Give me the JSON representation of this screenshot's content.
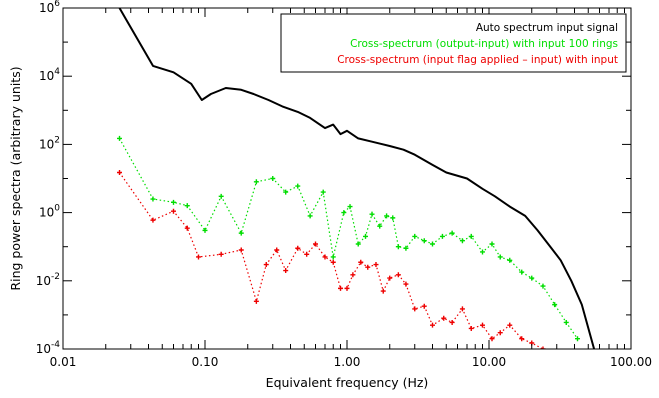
{
  "chart_data": {
    "type": "scatter",
    "title": "",
    "xlabel": "Equivalent frequency (Hz)",
    "ylabel": "Ring power spectra (arbitrary units)",
    "x_scale": "log",
    "y_scale": "log",
    "xlim": [
      0.01,
      100
    ],
    "ylim": [
      0.0001,
      1000000
    ],
    "x_ticks": [
      {
        "value": 0.01,
        "label": "0.01"
      },
      {
        "value": 0.1,
        "label": "0.10"
      },
      {
        "value": 1,
        "label": "1.00"
      },
      {
        "value": 10,
        "label": "10.00"
      },
      {
        "value": 100,
        "label": "100.00"
      }
    ],
    "y_ticks": [
      {
        "value": 0.0001,
        "base": "10",
        "exp": "-4"
      },
      {
        "value": 0.01,
        "base": "10",
        "exp": "-2"
      },
      {
        "value": 1,
        "base": "10",
        "exp": "0"
      },
      {
        "value": 100,
        "base": "10",
        "exp": "2"
      },
      {
        "value": 10000,
        "base": "10",
        "exp": "4"
      },
      {
        "value": 1000000,
        "base": "10",
        "exp": "6"
      }
    ],
    "grid": false,
    "legend_position": "top-right",
    "series": [
      {
        "name": "Auto spectrum input signal",
        "color": "#000000",
        "style": "solid-line",
        "x": [
          0.025,
          0.043,
          0.06,
          0.08,
          0.095,
          0.11,
          0.14,
          0.18,
          0.22,
          0.28,
          0.35,
          0.45,
          0.55,
          0.7,
          0.8,
          0.9,
          1.0,
          1.2,
          1.5,
          2.0,
          2.5,
          3.0,
          4.0,
          5.0,
          7.0,
          9.0,
          11.0,
          14.0,
          18.0,
          22.0,
          27.0,
          32.0,
          38.0,
          45.0,
          55.0
        ],
        "y": [
          1000000,
          20000,
          13000,
          6000,
          2000,
          3000,
          4500,
          4000,
          3000,
          2000,
          1300,
          900,
          600,
          300,
          380,
          200,
          250,
          150,
          120,
          90,
          70,
          50,
          25,
          15,
          10,
          5,
          3,
          1.5,
          0.8,
          0.3,
          0.1,
          0.04,
          0.01,
          0.002,
          0.0001
        ]
      },
      {
        "name": "Cross-spectrum (output-input) with input 100 rings",
        "color": "#00dd00",
        "style": "dotted-markers",
        "x": [
          0.025,
          0.043,
          0.06,
          0.075,
          0.1,
          0.13,
          0.18,
          0.23,
          0.3,
          0.37,
          0.45,
          0.55,
          0.68,
          0.8,
          0.95,
          1.05,
          1.2,
          1.35,
          1.5,
          1.7,
          1.9,
          2.1,
          2.3,
          2.6,
          3.0,
          3.5,
          4.0,
          4.7,
          5.5,
          6.5,
          7.5,
          9.0,
          10.5,
          12.0,
          14.0,
          17.0,
          20.0,
          24.0,
          29.0,
          35.0,
          42.0
        ],
        "y": [
          150,
          2.5,
          2.0,
          1.6,
          0.3,
          3.0,
          0.25,
          8.0,
          10.0,
          4.0,
          6.0,
          0.8,
          4.0,
          0.05,
          1.0,
          1.5,
          0.12,
          0.2,
          0.9,
          0.4,
          0.8,
          0.7,
          0.1,
          0.09,
          0.2,
          0.15,
          0.12,
          0.2,
          0.25,
          0.15,
          0.2,
          0.07,
          0.12,
          0.05,
          0.04,
          0.018,
          0.012,
          0.007,
          0.002,
          0.0006,
          0.0002
        ]
      },
      {
        "name": "Cross-spectrum (input flag applied – input) with input",
        "color": "#ee0000",
        "style": "dotted-markers",
        "x": [
          0.025,
          0.043,
          0.06,
          0.075,
          0.09,
          0.13,
          0.18,
          0.23,
          0.27,
          0.32,
          0.37,
          0.45,
          0.52,
          0.6,
          0.7,
          0.8,
          0.9,
          1.0,
          1.1,
          1.25,
          1.4,
          1.6,
          1.8,
          2.0,
          2.3,
          2.6,
          3.0,
          3.5,
          4.0,
          4.8,
          5.5,
          6.5,
          7.5,
          9.0,
          10.5,
          12.0,
          14.0,
          17.0,
          20.0,
          24.0
        ],
        "y": [
          15,
          0.6,
          1.1,
          0.35,
          0.05,
          0.06,
          0.08,
          0.0025,
          0.03,
          0.08,
          0.02,
          0.09,
          0.06,
          0.12,
          0.05,
          0.035,
          0.006,
          0.006,
          0.015,
          0.035,
          0.025,
          0.03,
          0.005,
          0.012,
          0.015,
          0.008,
          0.0015,
          0.0018,
          0.0005,
          0.0008,
          0.0006,
          0.0015,
          0.0004,
          0.0005,
          0.0002,
          0.0003,
          0.0005,
          0.0002,
          0.00015,
          0.0001
        ]
      }
    ]
  }
}
